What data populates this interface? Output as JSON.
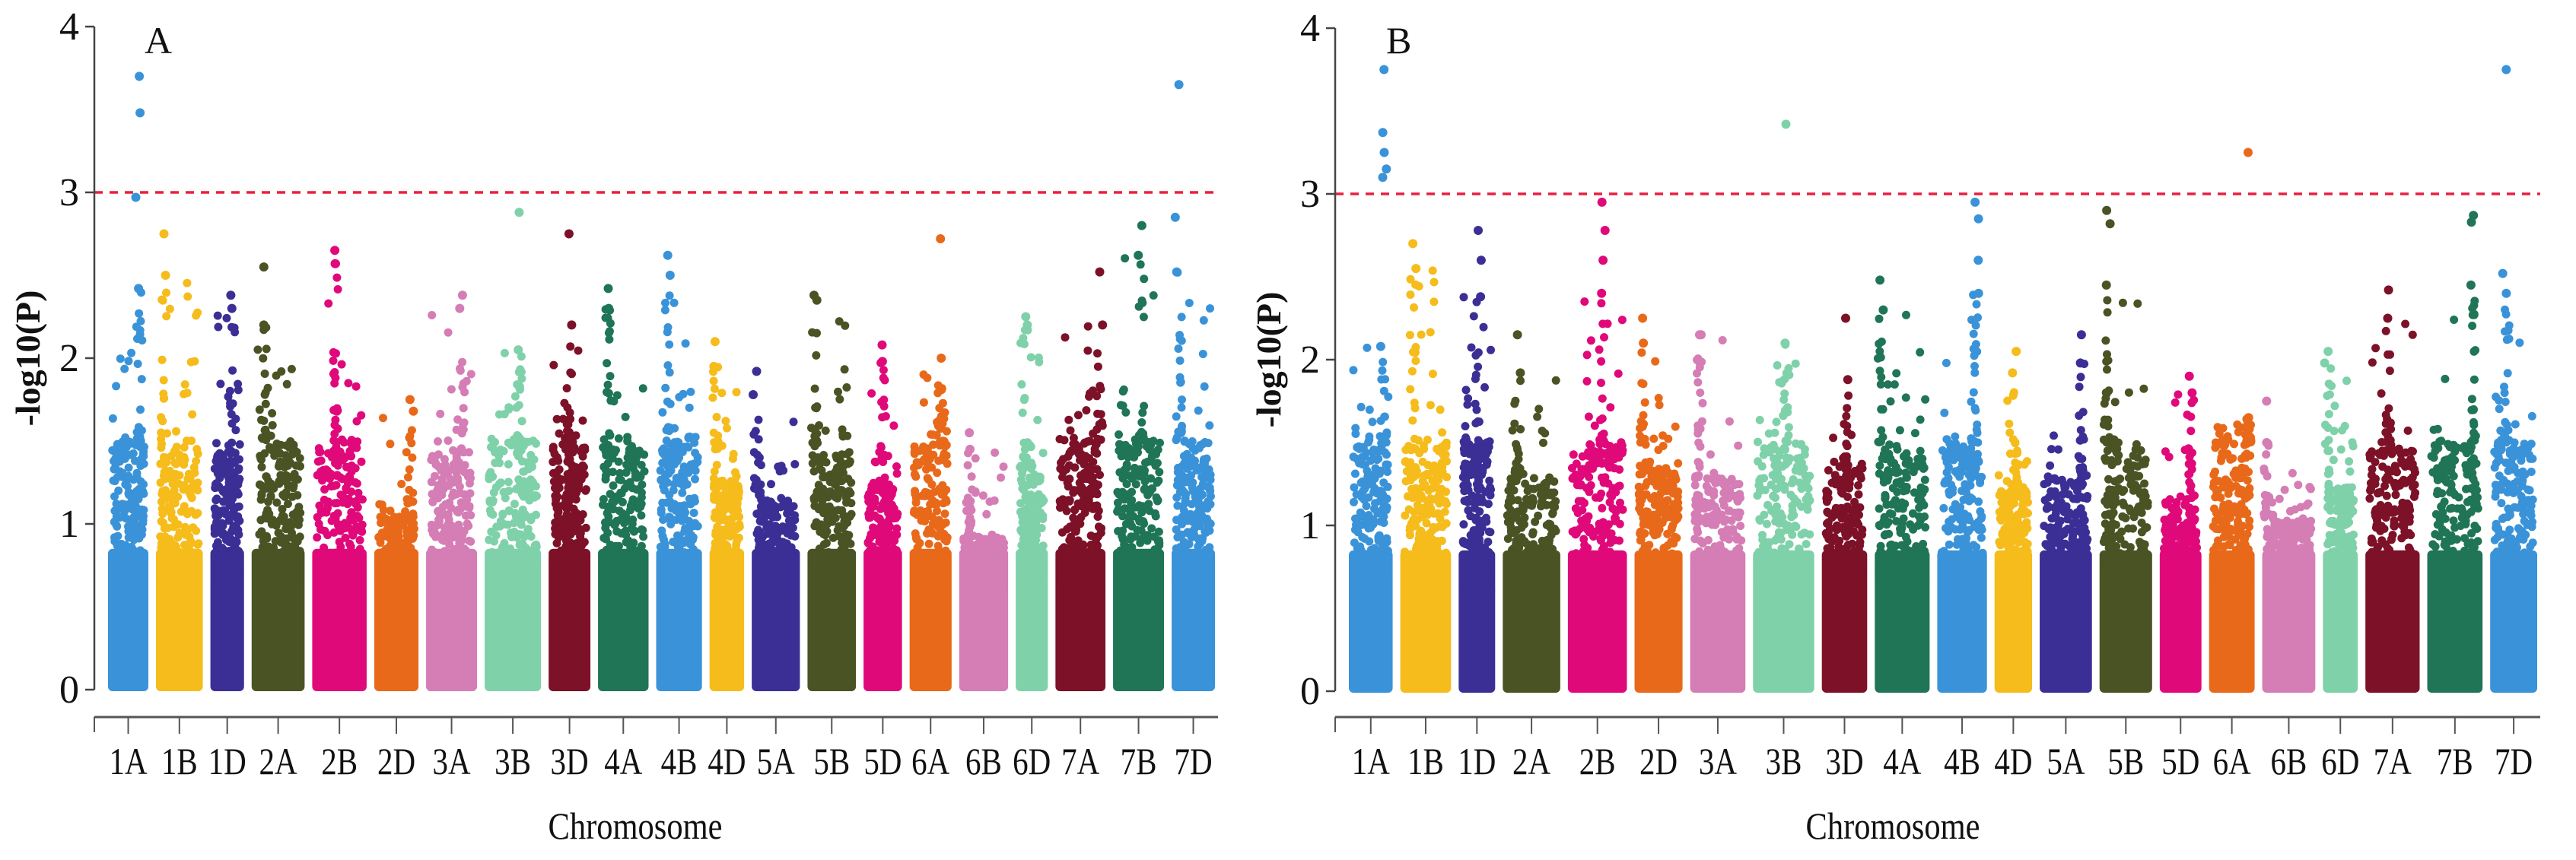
{
  "chart_data": [
    {
      "type": "scatter",
      "subtype": "manhattan",
      "panel_label": "A",
      "xlabel": "Chromosome",
      "ylabel": "-log10(P)",
      "ylim": [
        0,
        4
      ],
      "yticks": [
        "0",
        "1",
        "2",
        "3",
        "4"
      ],
      "threshold": 3,
      "threshold_color": "#e8203f",
      "grid": false,
      "chromosomes": [
        {
          "name": "1A",
          "color": "#3a93d8",
          "length": 594,
          "max": 3.7,
          "top_hits": [
            3.7,
            3.48,
            2.97,
            2.42
          ]
        },
        {
          "name": "1B",
          "color": "#f5bc1c",
          "length": 689,
          "max": 2.75,
          "top_hits": [
            2.75,
            2.5
          ]
        },
        {
          "name": "1D",
          "color": "#3b2f96",
          "length": 495,
          "max": 2.38,
          "top_hits": [
            2.38,
            2.3
          ]
        },
        {
          "name": "2A",
          "color": "#4a5324",
          "length": 780,
          "max": 2.55,
          "top_hits": [
            2.55,
            2.2
          ]
        },
        {
          "name": "2B",
          "color": "#e0097a",
          "length": 801,
          "max": 2.65,
          "top_hits": [
            2.65,
            2.57
          ]
        },
        {
          "name": "2D",
          "color": "#e8691a",
          "length": 651,
          "max": 1.75,
          "top_hits": [
            1.75,
            1.68
          ]
        },
        {
          "name": "3A",
          "color": "#d57db5",
          "length": 750,
          "max": 2.38,
          "top_hits": [
            2.38,
            2.3
          ]
        },
        {
          "name": "3B",
          "color": "#7fd1aa",
          "length": 830,
          "max": 2.88,
          "top_hits": [
            2.88,
            2.05
          ]
        },
        {
          "name": "3D",
          "color": "#7c1128",
          "length": 615,
          "max": 2.75,
          "top_hits": [
            2.75,
            2.2
          ]
        },
        {
          "name": "4A",
          "color": "#1f7556",
          "length": 744,
          "max": 2.42,
          "top_hits": [
            2.42,
            2.3
          ]
        },
        {
          "name": "4B",
          "color": "#3a93d8",
          "length": 674,
          "max": 2.62,
          "top_hits": [
            2.62,
            2.5
          ]
        },
        {
          "name": "4D",
          "color": "#f5bc1c",
          "length": 509,
          "max": 2.1,
          "top_hits": [
            2.1,
            1.95
          ]
        },
        {
          "name": "5A",
          "color": "#3b2f96",
          "length": 709,
          "max": 1.92,
          "top_hits": [
            1.92,
            1.78
          ]
        },
        {
          "name": "5B",
          "color": "#4a5324",
          "length": 713,
          "max": 2.38,
          "top_hits": [
            2.38,
            2.35
          ]
        },
        {
          "name": "5D",
          "color": "#e0097a",
          "length": 566,
          "max": 2.08,
          "top_hits": [
            2.08,
            1.98
          ]
        },
        {
          "name": "6A",
          "color": "#e8691a",
          "length": 618,
          "max": 2.72,
          "top_hits": [
            2.72,
            2.0
          ]
        },
        {
          "name": "6B",
          "color": "#d57db5",
          "length": 720,
          "max": 1.55,
          "top_hits": [
            1.55,
            1.45
          ]
        },
        {
          "name": "6D",
          "color": "#7fd1aa",
          "length": 473,
          "max": 2.25,
          "top_hits": [
            2.25,
            2.2
          ]
        },
        {
          "name": "7A",
          "color": "#7c1128",
          "length": 736,
          "max": 2.52,
          "top_hits": [
            2.52,
            2.2
          ]
        },
        {
          "name": "7B",
          "color": "#1f7556",
          "length": 750,
          "max": 2.8,
          "top_hits": [
            2.8,
            2.62
          ]
        },
        {
          "name": "7D",
          "color": "#3a93d8",
          "length": 638,
          "max": 3.65,
          "top_hits": [
            3.65,
            2.85,
            2.52
          ]
        }
      ]
    },
    {
      "type": "scatter",
      "subtype": "manhattan",
      "panel_label": "B",
      "xlabel": "Chromosome",
      "ylabel": "-log10(P)",
      "ylim": [
        0,
        4
      ],
      "yticks": [
        "0",
        "1",
        "2",
        "3",
        "4"
      ],
      "threshold": 3,
      "threshold_color": "#e8203f",
      "grid": false,
      "chromosomes": [
        {
          "name": "1A",
          "color": "#3a93d8",
          "length": 594,
          "max": 3.75,
          "top_hits": [
            3.75,
            3.37,
            3.25,
            3.15,
            3.1,
            2.08
          ]
        },
        {
          "name": "1B",
          "color": "#f5bc1c",
          "length": 689,
          "max": 2.7,
          "top_hits": [
            2.7,
            2.55
          ]
        },
        {
          "name": "1D",
          "color": "#3b2f96",
          "length": 495,
          "max": 2.78,
          "top_hits": [
            2.78,
            2.6,
            2.38
          ]
        },
        {
          "name": "2A",
          "color": "#4a5324",
          "length": 780,
          "max": 2.15,
          "top_hits": [
            2.15,
            1.92
          ]
        },
        {
          "name": "2B",
          "color": "#e0097a",
          "length": 801,
          "max": 2.95,
          "top_hits": [
            2.95,
            2.78,
            2.6,
            2.4
          ]
        },
        {
          "name": "2D",
          "color": "#e8691a",
          "length": 651,
          "max": 2.25,
          "top_hits": [
            2.25,
            2.1
          ]
        },
        {
          "name": "3A",
          "color": "#d57db5",
          "length": 750,
          "max": 2.15,
          "top_hits": [
            2.15,
            2.15
          ]
        },
        {
          "name": "3B",
          "color": "#7fd1aa",
          "length": 830,
          "max": 3.42,
          "top_hits": [
            3.42,
            2.1
          ]
        },
        {
          "name": "3D",
          "color": "#7c1128",
          "length": 615,
          "max": 2.25,
          "top_hits": [
            2.25,
            1.88
          ]
        },
        {
          "name": "4A",
          "color": "#1f7556",
          "length": 744,
          "max": 2.48,
          "top_hits": [
            2.48,
            2.3
          ]
        },
        {
          "name": "4B",
          "color": "#3a93d8",
          "length": 674,
          "max": 2.95,
          "top_hits": [
            2.95,
            2.85,
            2.6,
            2.4
          ]
        },
        {
          "name": "4D",
          "color": "#f5bc1c",
          "length": 509,
          "max": 2.05,
          "top_hits": [
            2.05,
            1.92
          ]
        },
        {
          "name": "5A",
          "color": "#3b2f96",
          "length": 709,
          "max": 2.15,
          "top_hits": [
            2.15,
            1.98
          ]
        },
        {
          "name": "5B",
          "color": "#4a5324",
          "length": 713,
          "max": 2.9,
          "top_hits": [
            2.9,
            2.82,
            2.45
          ]
        },
        {
          "name": "5D",
          "color": "#e0097a",
          "length": 566,
          "max": 1.9,
          "top_hits": [
            1.9,
            1.8
          ]
        },
        {
          "name": "6A",
          "color": "#e8691a",
          "length": 618,
          "max": 3.25,
          "top_hits": [
            3.25,
            1.65
          ]
        },
        {
          "name": "6B",
          "color": "#d57db5",
          "length": 720,
          "max": 1.75,
          "top_hits": [
            1.75,
            1.5
          ]
        },
        {
          "name": "6D",
          "color": "#7fd1aa",
          "length": 473,
          "max": 2.05,
          "top_hits": [
            2.05,
            1.98
          ]
        },
        {
          "name": "7A",
          "color": "#7c1128",
          "length": 736,
          "max": 2.42,
          "top_hits": [
            2.42,
            2.25
          ]
        },
        {
          "name": "7B",
          "color": "#1f7556",
          "length": 750,
          "max": 2.87,
          "top_hits": [
            2.87,
            2.83,
            2.45
          ]
        },
        {
          "name": "7D",
          "color": "#3a93d8",
          "length": 638,
          "max": 3.75,
          "top_hits": [
            3.75,
            2.52,
            2.4
          ]
        }
      ]
    }
  ]
}
